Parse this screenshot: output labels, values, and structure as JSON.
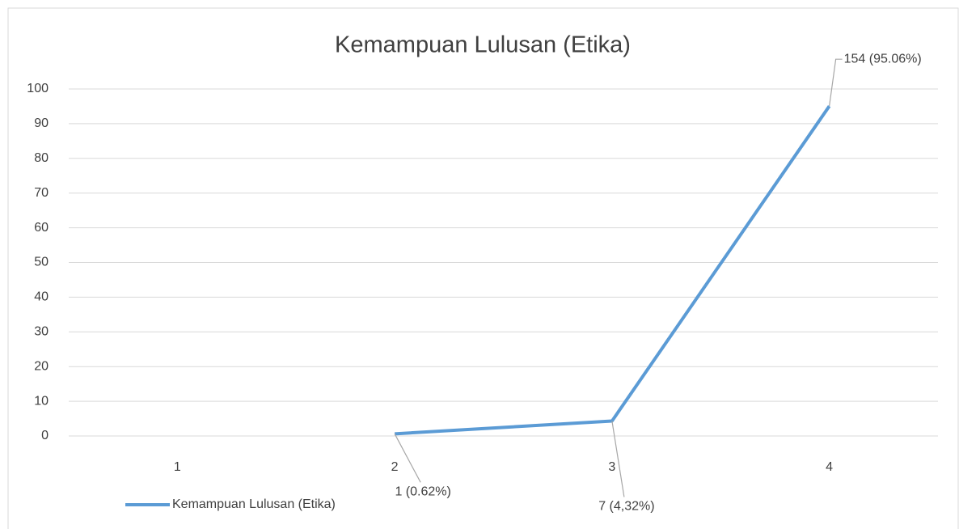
{
  "chart_data": {
    "type": "line",
    "title": "Kemampuan Lulusan (Etika)",
    "categories": [
      "1",
      "2",
      "3",
      "4"
    ],
    "series": [
      {
        "name": "Kemampuan Lulusan (Etika)",
        "color": "#5b9bd5",
        "values": [
          null,
          0.62,
          4.32,
          95.06
        ],
        "value_labels": [
          null,
          "1 (0.62%)",
          "7 (4,32%)",
          "154 (95.06%)"
        ]
      }
    ],
    "ylim": [
      0,
      100
    ],
    "yticks": [
      0,
      10,
      20,
      30,
      40,
      50,
      60,
      70,
      80,
      90,
      100
    ],
    "grid": true,
    "legend": "bottom-left"
  }
}
